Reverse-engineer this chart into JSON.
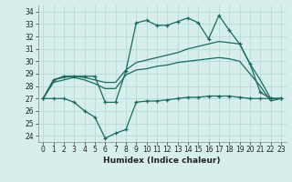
{
  "title": "",
  "xlabel": "Humidex (Indice chaleur)",
  "xlim": [
    -0.5,
    23.5
  ],
  "ylim": [
    23.5,
    34.5
  ],
  "yticks": [
    24,
    25,
    26,
    27,
    28,
    29,
    30,
    31,
    32,
    33,
    34
  ],
  "xticks": [
    0,
    1,
    2,
    3,
    4,
    5,
    6,
    7,
    8,
    9,
    10,
    11,
    12,
    13,
    14,
    15,
    16,
    17,
    18,
    19,
    20,
    21,
    22,
    23
  ],
  "bg_color": "#d6efed",
  "line_color": "#1a6b5a",
  "grid_color": "#b0d8d4",
  "lines": [
    {
      "x": [
        0,
        1,
        2,
        3,
        4,
        5,
        6,
        7,
        8,
        9,
        10,
        11,
        12,
        13,
        14,
        15,
        16,
        17,
        18,
        19,
        20,
        21,
        22,
        23
      ],
      "y": [
        27,
        28.5,
        28.8,
        28.8,
        28.8,
        28.8,
        26.7,
        26.7,
        29.2,
        33.1,
        33.3,
        32.9,
        32.9,
        33.2,
        33.5,
        33.1,
        31.8,
        33.7,
        32.5,
        31.4,
        29.8,
        27.5,
        27.0,
        27.0
      ],
      "marker": true
    },
    {
      "x": [
        0,
        1,
        2,
        3,
        4,
        5,
        6,
        7,
        8,
        9,
        10,
        11,
        12,
        13,
        14,
        15,
        16,
        17,
        18,
        19,
        20,
        21,
        22,
        23
      ],
      "y": [
        27,
        28.5,
        28.7,
        28.8,
        28.7,
        28.5,
        28.3,
        28.3,
        29.3,
        29.9,
        30.1,
        30.3,
        30.5,
        30.7,
        31.0,
        31.2,
        31.4,
        31.6,
        31.5,
        31.4,
        29.8,
        28.5,
        27.0,
        27.0
      ],
      "marker": false
    },
    {
      "x": [
        0,
        1,
        2,
        3,
        4,
        5,
        6,
        7,
        8,
        9,
        10,
        11,
        12,
        13,
        14,
        15,
        16,
        17,
        18,
        19,
        20,
        21,
        22,
        23
      ],
      "y": [
        27,
        28.3,
        28.5,
        28.7,
        28.5,
        28.2,
        27.8,
        27.8,
        28.9,
        29.3,
        29.4,
        29.6,
        29.7,
        29.9,
        30.0,
        30.1,
        30.2,
        30.3,
        30.2,
        30.0,
        29.0,
        28.0,
        26.8,
        27.0
      ],
      "marker": false
    },
    {
      "x": [
        0,
        1,
        2,
        3,
        4,
        5,
        6,
        7,
        8,
        9,
        10,
        11,
        12,
        13,
        14,
        15,
        16,
        17,
        18,
        19,
        20,
        21,
        22,
        23
      ],
      "y": [
        27,
        27.0,
        27.0,
        26.7,
        26.0,
        25.5,
        23.8,
        24.2,
        24.5,
        26.7,
        26.8,
        26.8,
        26.9,
        27.0,
        27.1,
        27.1,
        27.2,
        27.2,
        27.2,
        27.1,
        27.0,
        27.0,
        27.0,
        27.0
      ],
      "marker": true
    }
  ]
}
